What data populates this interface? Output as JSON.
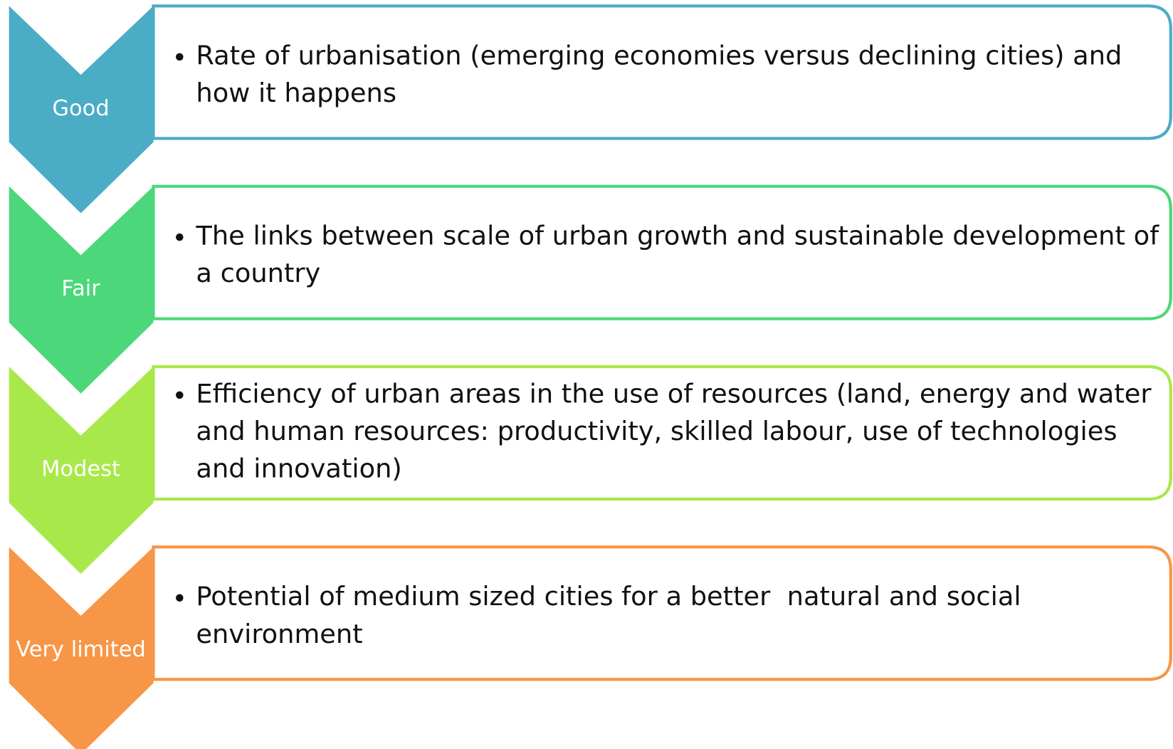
{
  "items": [
    {
      "label": "Good",
      "text": "Rate of urbanisation (emerging economies versus declining cities) and how it happens",
      "color": "#4bacc6"
    },
    {
      "label": "Fair",
      "text": "The links between scale of urban growth and sustainable development of a country",
      "color": "#4cd77a"
    },
    {
      "label": "Modest",
      "text": "Efficiency of urban areas in the use of resources (land, energy and water and human resources: productivity, skilled labour, use of technologies and innovation)",
      "color": "#a9e84a"
    },
    {
      "label": "Very limited",
      "text": "Potential of medium sized cities for a better  natural and social environment",
      "color": "#f79646"
    }
  ]
}
